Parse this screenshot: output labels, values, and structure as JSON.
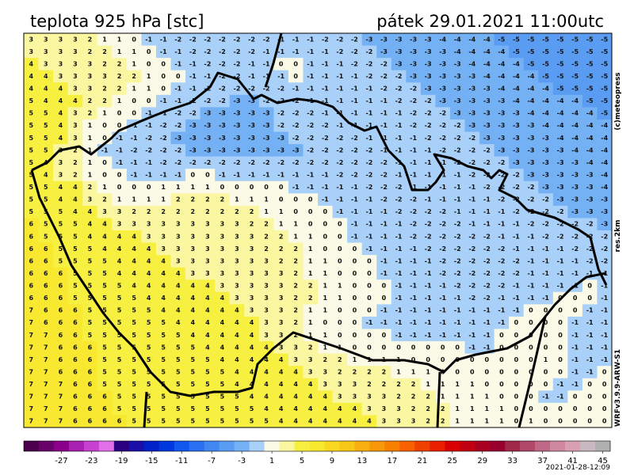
{
  "header": {
    "title": "teplota 925 hPa [stc]",
    "datetime": "pátek 29.01.2021 11:00utc"
  },
  "side_labels": [
    "(c)meteopress",
    "res.2km",
    "WRFv3.9.9-ARW-S1"
  ],
  "grid": {
    "rows": [
      [
        3,
        3,
        3,
        3,
        2,
        1,
        1,
        0,
        -1,
        -1,
        -2,
        -2,
        -2,
        -2,
        -2,
        -2,
        -2,
        -1,
        -1,
        -1,
        -2,
        -2,
        -2,
        -3,
        -3,
        -3,
        -3,
        -3,
        -4,
        -4,
        -4,
        -4,
        -5,
        -5,
        -5,
        -5,
        -5,
        -5,
        -5,
        -5
      ],
      [
        3,
        3,
        3,
        3,
        2,
        2,
        1,
        1,
        0,
        -1,
        -1,
        -2,
        -2,
        -2,
        -2,
        -2,
        -1,
        -1,
        -1,
        -1,
        -1,
        -2,
        -2,
        -2,
        -3,
        -3,
        -3,
        -3,
        -3,
        -4,
        -4,
        -4,
        -4,
        -5,
        -5,
        -5,
        -5,
        -5,
        -5,
        -5
      ],
      [
        4,
        3,
        3,
        3,
        3,
        2,
        2,
        1,
        0,
        0,
        -1,
        -1,
        -2,
        -2,
        -2,
        -1,
        -1,
        0,
        0,
        -1,
        -1,
        -1,
        -2,
        -2,
        -2,
        -3,
        -3,
        -3,
        -3,
        -3,
        -4,
        -4,
        -4,
        -4,
        -5,
        -5,
        -5,
        -5,
        -5,
        -5
      ],
      [
        4,
        4,
        3,
        3,
        3,
        3,
        2,
        2,
        1,
        0,
        0,
        -1,
        -1,
        -2,
        -2,
        -1,
        -1,
        -1,
        0,
        -1,
        -1,
        -1,
        -1,
        -2,
        -2,
        -2,
        -3,
        -3,
        -3,
        -3,
        -3,
        -4,
        -4,
        -4,
        -4,
        -5,
        -5,
        -5,
        -5,
        -5
      ],
      [
        4,
        4,
        4,
        3,
        3,
        2,
        2,
        1,
        1,
        0,
        -1,
        -1,
        -2,
        -2,
        -2,
        -2,
        -2,
        -2,
        -1,
        -1,
        -1,
        -1,
        -1,
        -1,
        -2,
        -2,
        -2,
        -3,
        -3,
        -3,
        -3,
        -3,
        -4,
        -4,
        -4,
        -4,
        -5,
        -5,
        -5,
        -5
      ],
      [
        5,
        4,
        4,
        4,
        2,
        2,
        1,
        0,
        0,
        -1,
        -1,
        -2,
        -2,
        -2,
        -3,
        -3,
        -2,
        -2,
        -2,
        -1,
        -1,
        -1,
        -1,
        -1,
        -1,
        -2,
        -2,
        -2,
        -3,
        -3,
        -3,
        -3,
        -3,
        -4,
        -4,
        -4,
        -4,
        -4,
        -5,
        -5
      ],
      [
        5,
        5,
        4,
        3,
        2,
        1,
        0,
        0,
        -1,
        -1,
        -2,
        -2,
        -3,
        -3,
        -3,
        -3,
        -3,
        -2,
        -2,
        -2,
        -1,
        -1,
        -1,
        -1,
        -1,
        -1,
        -2,
        -2,
        -2,
        -3,
        -3,
        -3,
        -3,
        -3,
        -4,
        -4,
        -4,
        -4,
        -4,
        -5
      ],
      [
        5,
        5,
        4,
        3,
        1,
        0,
        0,
        -1,
        -1,
        -2,
        -2,
        -3,
        -3,
        -3,
        -3,
        -3,
        -3,
        -2,
        -2,
        -2,
        -2,
        -1,
        -1,
        -1,
        -1,
        -1,
        -2,
        -2,
        -2,
        -2,
        -3,
        -3,
        -3,
        -3,
        -3,
        -4,
        -4,
        -4,
        -4,
        -4
      ],
      [
        5,
        5,
        4,
        3,
        1,
        0,
        -1,
        -1,
        -2,
        -2,
        -3,
        -3,
        -3,
        -3,
        -3,
        -3,
        -3,
        -3,
        -2,
        -2,
        -2,
        -2,
        -2,
        -1,
        -1,
        -1,
        -1,
        -2,
        -2,
        -2,
        -2,
        -3,
        -3,
        -3,
        -3,
        -3,
        -4,
        -4,
        -4,
        -4
      ],
      [
        5,
        5,
        3,
        2,
        1,
        -1,
        -1,
        -2,
        -2,
        -2,
        -2,
        -3,
        -3,
        -3,
        -3,
        -3,
        -3,
        -3,
        -3,
        -2,
        -2,
        -2,
        -2,
        -2,
        -1,
        -1,
        -1,
        -1,
        -2,
        -2,
        -2,
        -2,
        -3,
        -3,
        -3,
        -3,
        -3,
        -4,
        -4,
        -4
      ],
      [
        5,
        4,
        3,
        2,
        1,
        0,
        -1,
        -1,
        -1,
        -2,
        -2,
        -2,
        -2,
        -2,
        -2,
        -2,
        -2,
        -2,
        -2,
        -2,
        -2,
        -2,
        -2,
        -2,
        -2,
        -1,
        -1,
        -1,
        -1,
        -2,
        -2,
        -2,
        -2,
        -3,
        -3,
        -3,
        -3,
        -3,
        -4,
        -4
      ],
      [
        5,
        4,
        3,
        2,
        1,
        0,
        0,
        -1,
        -1,
        -1,
        -1,
        0,
        0,
        -1,
        -1,
        -1,
        -1,
        -1,
        -1,
        -1,
        -1,
        -2,
        -2,
        -2,
        -2,
        -1,
        -1,
        -1,
        -1,
        -1,
        -2,
        -2,
        -2,
        -2,
        -3,
        -3,
        -3,
        -3,
        -3,
        -4
      ],
      [
        5,
        5,
        4,
        4,
        2,
        1,
        0,
        0,
        0,
        1,
        1,
        1,
        1,
        0,
        0,
        0,
        0,
        0,
        -1,
        -1,
        -1,
        -1,
        -1,
        -2,
        -2,
        -2,
        -1,
        -1,
        -1,
        -1,
        -1,
        -2,
        -2,
        -2,
        -2,
        -3,
        -3,
        -3,
        -3,
        -4
      ],
      [
        5,
        5,
        4,
        4,
        3,
        2,
        1,
        1,
        1,
        1,
        2,
        2,
        2,
        2,
        1,
        1,
        1,
        0,
        0,
        0,
        -1,
        -1,
        -1,
        -1,
        -2,
        -2,
        -2,
        -1,
        -1,
        -1,
        -1,
        -1,
        -2,
        -2,
        -2,
        -2,
        -3,
        -3,
        -3,
        -3
      ],
      [
        5,
        5,
        5,
        4,
        4,
        3,
        3,
        2,
        2,
        2,
        2,
        2,
        2,
        2,
        2,
        2,
        1,
        1,
        0,
        0,
        0,
        -1,
        -1,
        -1,
        -1,
        -2,
        -2,
        -2,
        -2,
        -1,
        -1,
        -1,
        -1,
        -2,
        -2,
        -2,
        -2,
        -3,
        -3,
        -3
      ],
      [
        6,
        5,
        5,
        5,
        4,
        4,
        3,
        3,
        3,
        3,
        3,
        3,
        3,
        3,
        3,
        2,
        2,
        1,
        1,
        0,
        0,
        0,
        -1,
        -1,
        -1,
        -1,
        -2,
        -2,
        -2,
        -2,
        -1,
        -1,
        -1,
        -1,
        -2,
        -2,
        -2,
        -2,
        -2,
        -3
      ],
      [
        6,
        5,
        5,
        5,
        4,
        4,
        4,
        4,
        3,
        3,
        3,
        3,
        3,
        3,
        3,
        3,
        2,
        2,
        1,
        1,
        0,
        0,
        -1,
        -1,
        -1,
        -1,
        -2,
        -2,
        -2,
        -2,
        -2,
        -2,
        -1,
        -1,
        -1,
        -2,
        -2,
        -2,
        -2,
        -2
      ],
      [
        6,
        6,
        5,
        5,
        5,
        4,
        4,
        4,
        4,
        3,
        3,
        3,
        3,
        3,
        3,
        3,
        2,
        2,
        2,
        1,
        0,
        0,
        0,
        -1,
        -1,
        -1,
        -1,
        -2,
        -2,
        -2,
        -2,
        -2,
        -2,
        -1,
        -1,
        -1,
        -1,
        -2,
        -2,
        -2
      ],
      [
        6,
        6,
        5,
        5,
        5,
        5,
        4,
        4,
        4,
        4,
        3,
        3,
        3,
        3,
        3,
        3,
        3,
        2,
        2,
        1,
        1,
        0,
        0,
        0,
        -1,
        -1,
        -1,
        -1,
        -2,
        -2,
        -2,
        -2,
        -2,
        -2,
        -1,
        -1,
        -1,
        -1,
        -2,
        -2
      ],
      [
        6,
        6,
        6,
        5,
        5,
        5,
        4,
        4,
        4,
        4,
        4,
        3,
        3,
        3,
        3,
        3,
        3,
        3,
        2,
        1,
        1,
        0,
        0,
        0,
        -1,
        -1,
        -1,
        -1,
        -2,
        -2,
        -2,
        -2,
        -2,
        -2,
        -1,
        -1,
        -1,
        -1,
        -1,
        -1
      ],
      [
        6,
        6,
        6,
        5,
        5,
        5,
        5,
        4,
        4,
        4,
        4,
        4,
        4,
        3,
        3,
        3,
        3,
        3,
        2,
        2,
        1,
        1,
        0,
        0,
        0,
        -1,
        -1,
        -1,
        -1,
        -2,
        -2,
        -2,
        -2,
        -1,
        -1,
        -1,
        -1,
        -1,
        0,
        -1
      ],
      [
        6,
        6,
        6,
        5,
        5,
        5,
        5,
        5,
        4,
        4,
        4,
        4,
        4,
        4,
        3,
        3,
        3,
        3,
        2,
        2,
        1,
        1,
        0,
        0,
        0,
        -1,
        -1,
        -1,
        -1,
        -1,
        -2,
        -2,
        -1,
        -1,
        -1,
        -1,
        0,
        0,
        0,
        -1
      ],
      [
        7,
        6,
        6,
        6,
        5,
        5,
        5,
        5,
        5,
        4,
        4,
        4,
        4,
        4,
        4,
        3,
        3,
        3,
        2,
        1,
        1,
        0,
        0,
        0,
        -1,
        -1,
        -1,
        -1,
        -1,
        -1,
        -1,
        -1,
        -1,
        -1,
        0,
        0,
        0,
        0,
        -1,
        -1
      ],
      [
        7,
        6,
        6,
        6,
        5,
        5,
        5,
        5,
        5,
        5,
        4,
        4,
        4,
        4,
        4,
        4,
        3,
        3,
        2,
        1,
        0,
        0,
        0,
        -1,
        -1,
        -1,
        -1,
        -1,
        -1,
        -1,
        -1,
        -1,
        -1,
        0,
        0,
        0,
        0,
        -1,
        -1,
        -1
      ],
      [
        7,
        7,
        6,
        6,
        5,
        5,
        5,
        5,
        5,
        5,
        5,
        4,
        4,
        4,
        4,
        4,
        3,
        3,
        2,
        1,
        1,
        0,
        0,
        0,
        0,
        -1,
        -1,
        -1,
        -1,
        -1,
        -1,
        -1,
        0,
        0,
        0,
        0,
        0,
        -1,
        -1,
        -1
      ],
      [
        7,
        7,
        6,
        6,
        6,
        5,
        5,
        5,
        5,
        5,
        5,
        5,
        4,
        4,
        4,
        4,
        4,
        3,
        3,
        2,
        1,
        1,
        0,
        0,
        0,
        0,
        0,
        0,
        0,
        0,
        -1,
        -1,
        0,
        0,
        0,
        0,
        0,
        -1,
        -1,
        -1
      ],
      [
        7,
        7,
        6,
        6,
        6,
        5,
        5,
        5,
        5,
        5,
        5,
        5,
        5,
        4,
        4,
        4,
        4,
        4,
        3,
        3,
        2,
        2,
        1,
        1,
        1,
        1,
        0,
        0,
        0,
        0,
        0,
        0,
        0,
        0,
        0,
        1,
        0,
        -1,
        -1,
        -1
      ],
      [
        7,
        7,
        6,
        6,
        6,
        5,
        5,
        5,
        5,
        5,
        5,
        5,
        5,
        5,
        4,
        4,
        4,
        4,
        4,
        3,
        3,
        2,
        2,
        2,
        2,
        1,
        1,
        1,
        0,
        0,
        0,
        0,
        0,
        0,
        0,
        0,
        0,
        -1,
        -1,
        0
      ],
      [
        7,
        7,
        7,
        6,
        6,
        5,
        5,
        5,
        5,
        5,
        5,
        5,
        5,
        5,
        4,
        4,
        4,
        4,
        4,
        4,
        3,
        3,
        3,
        2,
        2,
        2,
        2,
        1,
        1,
        1,
        1,
        0,
        0,
        0,
        0,
        0,
        -1,
        -1,
        0,
        0
      ],
      [
        7,
        7,
        7,
        6,
        6,
        6,
        5,
        5,
        5,
        5,
        5,
        5,
        5,
        5,
        5,
        4,
        4,
        4,
        4,
        4,
        4,
        3,
        3,
        3,
        3,
        2,
        2,
        2,
        1,
        1,
        1,
        1,
        0,
        0,
        0,
        -1,
        -1,
        0,
        0,
        0
      ],
      [
        7,
        7,
        7,
        6,
        6,
        6,
        5,
        5,
        5,
        5,
        5,
        5,
        5,
        5,
        5,
        5,
        4,
        4,
        4,
        4,
        4,
        4,
        4,
        3,
        3,
        3,
        2,
        2,
        2,
        1,
        1,
        1,
        1,
        0,
        0,
        0,
        0,
        0,
        0,
        0
      ],
      [
        7,
        7,
        7,
        6,
        6,
        6,
        6,
        5,
        5,
        5,
        5,
        5,
        5,
        5,
        5,
        5,
        5,
        4,
        4,
        4,
        4,
        4,
        4,
        4,
        3,
        3,
        3,
        2,
        2,
        1,
        1,
        1,
        1,
        0,
        1,
        0,
        0,
        0,
        0,
        0
      ]
    ]
  },
  "colorbar": {
    "lim": [
      -32,
      46
    ],
    "colors": [
      "#4a004a",
      "#6a006a",
      "#8a008a",
      "#a820b0",
      "#c840d0",
      "#e070e8",
      "#2a0080",
      "#1a10a8",
      "#0020c8",
      "#0038e0",
      "#1058f0",
      "#2a70f0",
      "#4088f0",
      "#5a9cf2",
      "#74b0f4",
      "#a8d0f8",
      "#fafae6",
      "#fbf7a0",
      "#f8f040",
      "#f8e830",
      "#f8d820",
      "#f8c818",
      "#f8b010",
      "#f89808",
      "#f88000",
      "#f86000",
      "#f04000",
      "#e82000",
      "#d80000",
      "#c00010",
      "#a80020",
      "#980030",
      "#a02848",
      "#b04868",
      "#c06888",
      "#d088a0",
      "#d8a0b0",
      "#c8b8c0",
      "#b0b0b0"
    ],
    "ticks": [
      -27,
      -23,
      -19,
      -15,
      -11,
      -7,
      -3,
      1,
      5,
      9,
      13,
      17,
      21,
      25,
      29,
      33,
      37,
      41,
      45
    ]
  },
  "footer": {
    "timestamp": "2021-01-28-12:09"
  }
}
